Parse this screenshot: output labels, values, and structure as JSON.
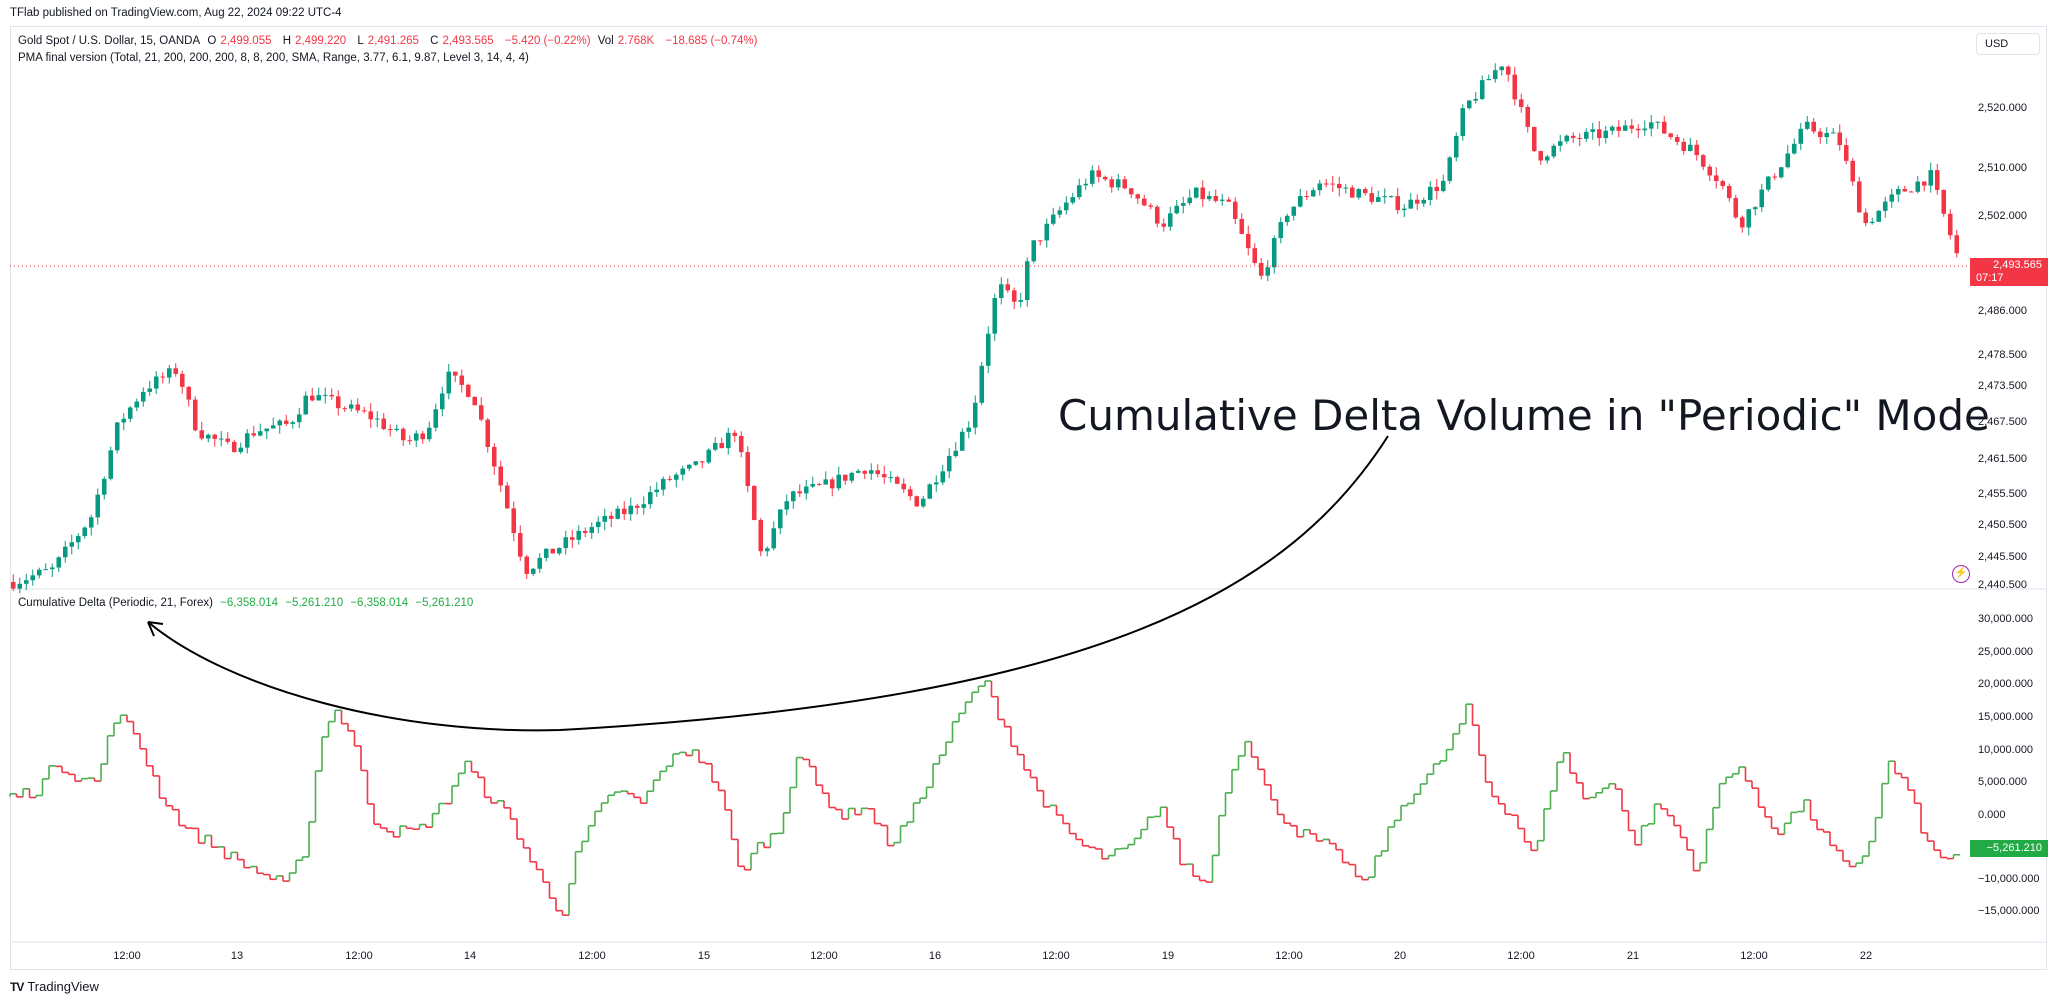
{
  "header": {
    "published": "TFlab published on TradingView.com, Aug 22, 2024 09:22 UTC-4"
  },
  "main_legend": {
    "symbol": "Gold Spot / U.S. Dollar, 15, OANDA",
    "o_label": "O",
    "o_value": "2,499.055",
    "h_label": "H",
    "h_value": "2,499.220",
    "l_label": "L",
    "l_value": "2,491.265",
    "c_label": "C",
    "c_value": "2,493.565",
    "change": "−5.420 (−0.22%)",
    "vol_label": "Vol",
    "vol_value": "2.768K",
    "vol_change": "−18.685 (−0.74%)",
    "indicator": "PMA final version (Total, 21, 200, 200, 200, 8, 8, 200, SMA, Range, 3.77, 6.1, 9.87, Level 3, 14, 4, 4)"
  },
  "currency_button": "USD",
  "price_scale": [
    "2,520.000",
    "2,510.000",
    "2,502.000",
    "2,486.000",
    "2,478.500",
    "2,473.500",
    "2,467.500",
    "2,461.500",
    "2,455.500",
    "2,450.500",
    "2,445.500",
    "2,440.500"
  ],
  "last_price": {
    "price": "2,493.565",
    "countdown": "07:17"
  },
  "cd_legend": {
    "title": "Cumulative Delta (Periodic, 21, Forex)",
    "v1": "−6,358.014",
    "v2": "−5,261.210",
    "v3": "−6,358.014",
    "v4": "−5,261.210"
  },
  "cd_scale": [
    "30,000.000",
    "25,000.000",
    "20,000.000",
    "15,000.000",
    "10,000.000",
    "5,000.000",
    "0.000",
    "−10,000.000",
    "−15,000.000"
  ],
  "cd_last": "−5,261.210",
  "time_axis": [
    "12:00",
    "13",
    "12:00",
    "14",
    "12:00",
    "15",
    "12:00",
    "16",
    "12:00",
    "19",
    "12:00",
    "20",
    "12:00",
    "21",
    "12:00",
    "22"
  ],
  "annotation": "Cumulative Delta Volume in \"Periodic\" Mode",
  "footer": {
    "brand": "TradingView",
    "logo": "TV"
  },
  "colors": {
    "up": "#089981",
    "down": "#f23645",
    "cd_up": "#4caf50",
    "cd_down": "#f23645",
    "accent": "#9c27b0"
  },
  "chart_data": [
    {
      "type": "candlestick",
      "title": "Gold Spot / U.S. Dollar, 15, OANDA",
      "ylim": [
        2440,
        2532
      ],
      "x": [
        "12:00",
        "13",
        "12:00",
        "14",
        "12:00",
        "15",
        "12:00",
        "16",
        "12:00",
        "19",
        "12:00",
        "20",
        "12:00",
        "21",
        "12:00",
        "22"
      ],
      "close_path": [
        [
          0,
          2441
        ],
        [
          6,
          2443
        ],
        [
          12,
          2452
        ],
        [
          16,
          2467
        ],
        [
          20,
          2473
        ],
        [
          25,
          2476
        ],
        [
          28,
          2466
        ],
        [
          33,
          2463
        ],
        [
          37,
          2466
        ],
        [
          42,
          2467
        ],
        [
          45,
          2472
        ],
        [
          50,
          2470
        ],
        [
          55,
          2468
        ],
        [
          60,
          2464
        ],
        [
          63,
          2466
        ],
        [
          66,
          2475
        ],
        [
          70,
          2472
        ],
        [
          74,
          2458
        ],
        [
          78,
          2443
        ],
        [
          82,
          2446
        ],
        [
          88,
          2450
        ],
        [
          94,
          2453
        ],
        [
          100,
          2458
        ],
        [
          104,
          2460
        ],
        [
          110,
          2466
        ],
        [
          114,
          2445
        ],
        [
          118,
          2455
        ],
        [
          124,
          2457
        ],
        [
          130,
          2460
        ],
        [
          138,
          2454
        ],
        [
          142,
          2461
        ],
        [
          146,
          2468
        ],
        [
          148,
          2480
        ],
        [
          150,
          2490
        ],
        [
          153,
          2486
        ],
        [
          155,
          2496
        ],
        [
          160,
          2503
        ],
        [
          164,
          2508
        ],
        [
          170,
          2506
        ],
        [
          175,
          2500
        ],
        [
          180,
          2505
        ],
        [
          185,
          2503
        ],
        [
          190,
          2491
        ],
        [
          194,
          2502
        ],
        [
          199,
          2507
        ],
        [
          205,
          2505
        ],
        [
          212,
          2503
        ],
        [
          218,
          2507
        ],
        [
          221,
          2519
        ],
        [
          227,
          2527
        ],
        [
          232,
          2511
        ],
        [
          237,
          2514
        ],
        [
          243,
          2515
        ],
        [
          249,
          2517
        ],
        [
          256,
          2512
        ],
        [
          260,
          2507
        ],
        [
          263,
          2500
        ],
        [
          268,
          2508
        ],
        [
          273,
          2516
        ],
        [
          278,
          2514
        ],
        [
          282,
          2500
        ],
        [
          287,
          2505
        ],
        [
          292,
          2508
        ],
        [
          296,
          2495
        ]
      ]
    },
    {
      "type": "bar",
      "title": "Cumulative Delta (Periodic, 21, Forex)",
      "ylim": [
        -17000,
        32000
      ],
      "close_path": [
        [
          0,
          3000
        ],
        [
          4,
          4000
        ],
        [
          7,
          8000
        ],
        [
          10,
          6000
        ],
        [
          13,
          5000
        ],
        [
          16,
          15000
        ],
        [
          19,
          12000
        ],
        [
          23,
          3000
        ],
        [
          27,
          -2000
        ],
        [
          31,
          -4000
        ],
        [
          34,
          -6000
        ],
        [
          38,
          -8000
        ],
        [
          42,
          -10000
        ],
        [
          45,
          -4000
        ],
        [
          47,
          10000
        ],
        [
          49,
          16000
        ],
        [
          52,
          12000
        ],
        [
          55,
          0
        ],
        [
          58,
          -2000
        ],
        [
          62,
          -2000
        ],
        [
          66,
          2000
        ],
        [
          69,
          8000
        ],
        [
          72,
          4000
        ],
        [
          76,
          0
        ],
        [
          79,
          -6000
        ],
        [
          82,
          -11000
        ],
        [
          84,
          -14000
        ],
        [
          86,
          -6000
        ],
        [
          89,
          0
        ],
        [
          92,
          4000
        ],
        [
          96,
          2000
        ],
        [
          100,
          8000
        ],
        [
          104,
          10000
        ],
        [
          108,
          4000
        ],
        [
          111,
          -8000
        ],
        [
          114,
          -4000
        ],
        [
          117,
          -2000
        ],
        [
          120,
          10000
        ],
        [
          123,
          4000
        ],
        [
          127,
          0
        ],
        [
          130,
          2000
        ],
        [
          134,
          -4000
        ],
        [
          137,
          0
        ],
        [
          141,
          8000
        ],
        [
          144,
          14000
        ],
        [
          148,
          20000
        ],
        [
          151,
          14000
        ],
        [
          155,
          6000
        ],
        [
          159,
          0
        ],
        [
          163,
          -4000
        ],
        [
          167,
          -6000
        ],
        [
          171,
          -4000
        ],
        [
          175,
          2000
        ],
        [
          178,
          -6000
        ],
        [
          182,
          -10000
        ],
        [
          185,
          4000
        ],
        [
          188,
          12000
        ],
        [
          192,
          2000
        ],
        [
          196,
          -2000
        ],
        [
          200,
          -4000
        ],
        [
          203,
          -6000
        ],
        [
          206,
          -10000
        ],
        [
          209,
          -4000
        ],
        [
          212,
          2000
        ],
        [
          216,
          6000
        ],
        [
          219,
          10000
        ],
        [
          222,
          16000
        ],
        [
          225,
          4000
        ],
        [
          229,
          0
        ],
        [
          232,
          -6000
        ],
        [
          236,
          10000
        ],
        [
          240,
          2000
        ],
        [
          244,
          6000
        ],
        [
          247,
          -4000
        ],
        [
          251,
          2000
        ],
        [
          254,
          -2000
        ],
        [
          257,
          -8000
        ],
        [
          260,
          4000
        ],
        [
          263,
          8000
        ],
        [
          266,
          2000
        ],
        [
          269,
          -2000
        ],
        [
          273,
          2000
        ],
        [
          277,
          -4000
        ],
        [
          280,
          -8000
        ],
        [
          283,
          -4000
        ],
        [
          286,
          8000
        ],
        [
          289,
          4000
        ],
        [
          292,
          -4000
        ],
        [
          294,
          -6000
        ],
        [
          296,
          -5261
        ]
      ]
    }
  ]
}
